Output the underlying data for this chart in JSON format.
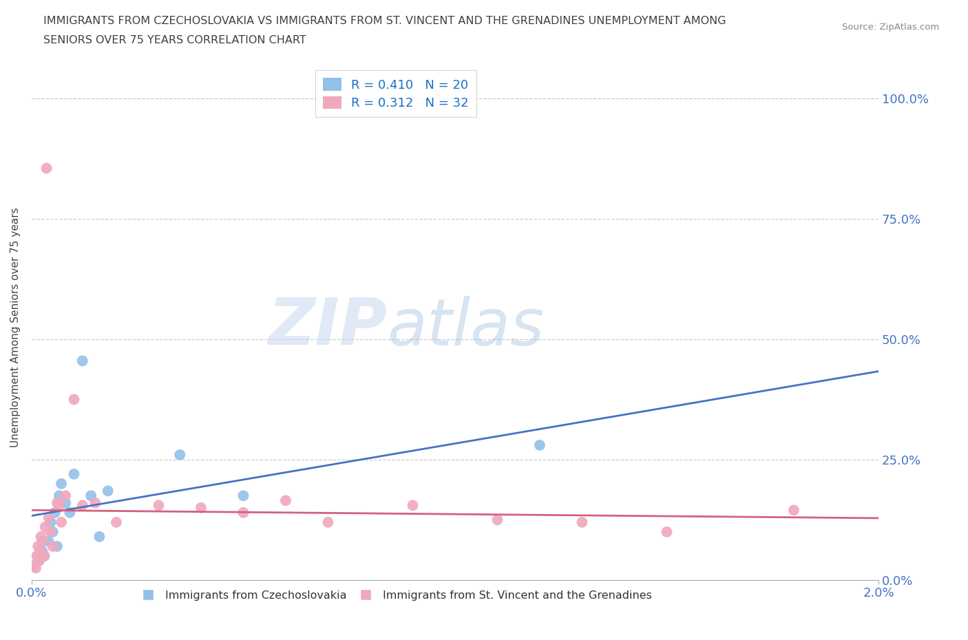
{
  "title_line1": "IMMIGRANTS FROM CZECHOSLOVAKIA VS IMMIGRANTS FROM ST. VINCENT AND THE GRENADINES UNEMPLOYMENT AMONG",
  "title_line2": "SENIORS OVER 75 YEARS CORRELATION CHART",
  "source": "Source: ZipAtlas.com",
  "ylabel": "Unemployment Among Seniors over 75 years",
  "yticks": [
    "0.0%",
    "25.0%",
    "50.0%",
    "75.0%",
    "100.0%"
  ],
  "ytick_vals": [
    0.0,
    0.25,
    0.5,
    0.75,
    1.0
  ],
  "legend1_R": "0.410",
  "legend1_N": "20",
  "legend2_R": "0.312",
  "legend2_N": "32",
  "color_czech": "#92c0e8",
  "color_svg": "#f0a8bc",
  "line_color_czech": "#4472c4",
  "line_color_svg": "#d46080",
  "watermark_zip": "ZIP",
  "watermark_atlas": "atlas",
  "czech_points_x": [
    0.00015,
    0.00025,
    0.0003,
    0.0004,
    0.00045,
    0.0005,
    0.00055,
    0.0006,
    0.00065,
    0.0007,
    0.0008,
    0.0009,
    0.001,
    0.0012,
    0.0014,
    0.0016,
    0.0018,
    0.0035,
    0.005,
    0.012
  ],
  "czech_points_y": [
    0.04,
    0.06,
    0.05,
    0.08,
    0.12,
    0.1,
    0.14,
    0.07,
    0.175,
    0.2,
    0.16,
    0.14,
    0.22,
    0.455,
    0.175,
    0.09,
    0.185,
    0.26,
    0.175,
    0.28
  ],
  "svg_points_x": [
    5e-05,
    0.0001,
    0.00012,
    0.00015,
    0.00018,
    0.0002,
    0.00022,
    0.00025,
    0.0003,
    0.00032,
    0.00035,
    0.0004,
    0.00045,
    0.0005,
    0.0006,
    0.00065,
    0.0007,
    0.0008,
    0.001,
    0.0012,
    0.0015,
    0.002,
    0.003,
    0.004,
    0.005,
    0.006,
    0.007,
    0.009,
    0.011,
    0.013,
    0.015,
    0.018
  ],
  "svg_points_y": [
    0.03,
    0.025,
    0.05,
    0.07,
    0.04,
    0.06,
    0.09,
    0.08,
    0.05,
    0.11,
    0.855,
    0.13,
    0.1,
    0.07,
    0.16,
    0.155,
    0.12,
    0.175,
    0.375,
    0.155,
    0.16,
    0.12,
    0.155,
    0.15,
    0.14,
    0.165,
    0.12,
    0.155,
    0.125,
    0.12,
    0.1,
    0.145
  ],
  "xlim": [
    0.0,
    0.02
  ],
  "ylim": [
    0.0,
    1.05
  ],
  "bottom_legend_czech": "Immigrants from Czechoslovakia",
  "bottom_legend_svg": "Immigrants from St. Vincent and the Grenadines"
}
